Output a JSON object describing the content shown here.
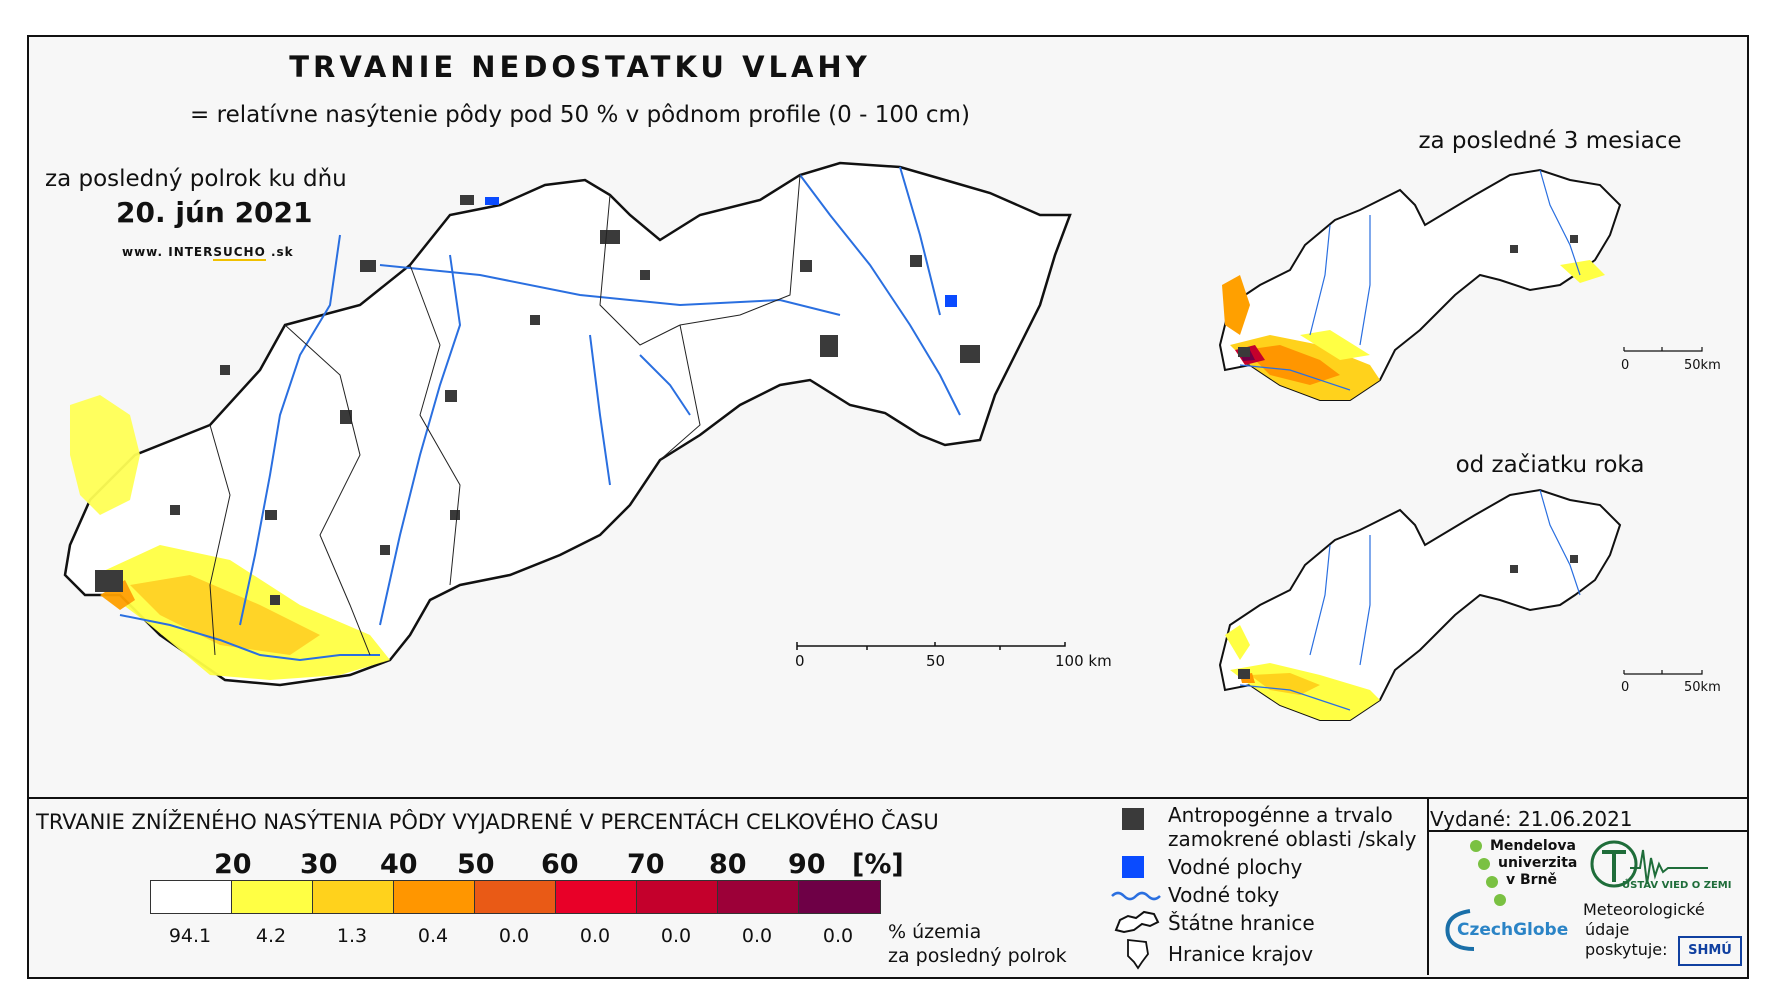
{
  "title": "TRVANIE NEDOSTATKU VLAHY",
  "subtitle": "= relatívne nasýtenie pôdy pod 50 % v pôdnom profile (0 - 100 cm)",
  "main_map": {
    "caption": "za posledný polrok ku dňu",
    "date": "20. jún 2021",
    "website_pre": "www. INTER",
    "website_brand": "SUCHO",
    "website_post": " .sk",
    "scale": {
      "labels": [
        "0",
        "50",
        "100 km"
      ]
    }
  },
  "inset_top": {
    "caption": "za posledné 3 mesiace",
    "scale": {
      "labels": [
        "0",
        "50km"
      ]
    }
  },
  "inset_bottom": {
    "caption": "od začiatku roka",
    "scale": {
      "labels": [
        "0",
        "50km"
      ]
    }
  },
  "legend": {
    "title": "TRVANIE ZNÍŽENÉHO NASÝTENIA PÔDY VYJADRENÉ V PERCENTÁCH CELKOVÉHO ČASU",
    "thresholds": [
      "20",
      "30",
      "40",
      "50",
      "60",
      "70",
      "80",
      "90"
    ],
    "unit": "[%]",
    "colors": [
      "#ffffff",
      "#ffff44",
      "#ffd21c",
      "#ff9600",
      "#e95a16",
      "#e80028",
      "#c4002c",
      "#9c0038",
      "#6e0046"
    ],
    "percent_values": [
      "94.1",
      "4.2",
      "1.3",
      "0.4",
      "0.0",
      "0.0",
      "0.0",
      "0.0",
      "0.0"
    ],
    "percent_note_line1": "% územia",
    "percent_note_line2": "za posledný polrok"
  },
  "map_legend": {
    "urban_line1": "Antropogénne a trvalo",
    "urban_line2": "zamokrené oblasti /skaly",
    "water_bodies": "Vodné plochy",
    "rivers": "Vodné toky",
    "state_border": "Štátne hranice",
    "region_border": "Hranice krajov",
    "urban_color": "#3a3a3a",
    "water_color": "#0a4bff",
    "river_color": "#2a6fe0"
  },
  "issued": "Vydané: 21.06.2021",
  "logos": {
    "mendel_line1": "Mendelova",
    "mendel_line2": "univerzita",
    "mendel_line3": "v Brně",
    "uvz": "ÚSTAV VIED O ZEMI",
    "czechglobe": "CzechGlobe",
    "meteo_line1": "Meteorologické",
    "meteo_line2": "údaje",
    "meteo_line3": "poskytuje:",
    "shmu": "SHMÚ"
  }
}
